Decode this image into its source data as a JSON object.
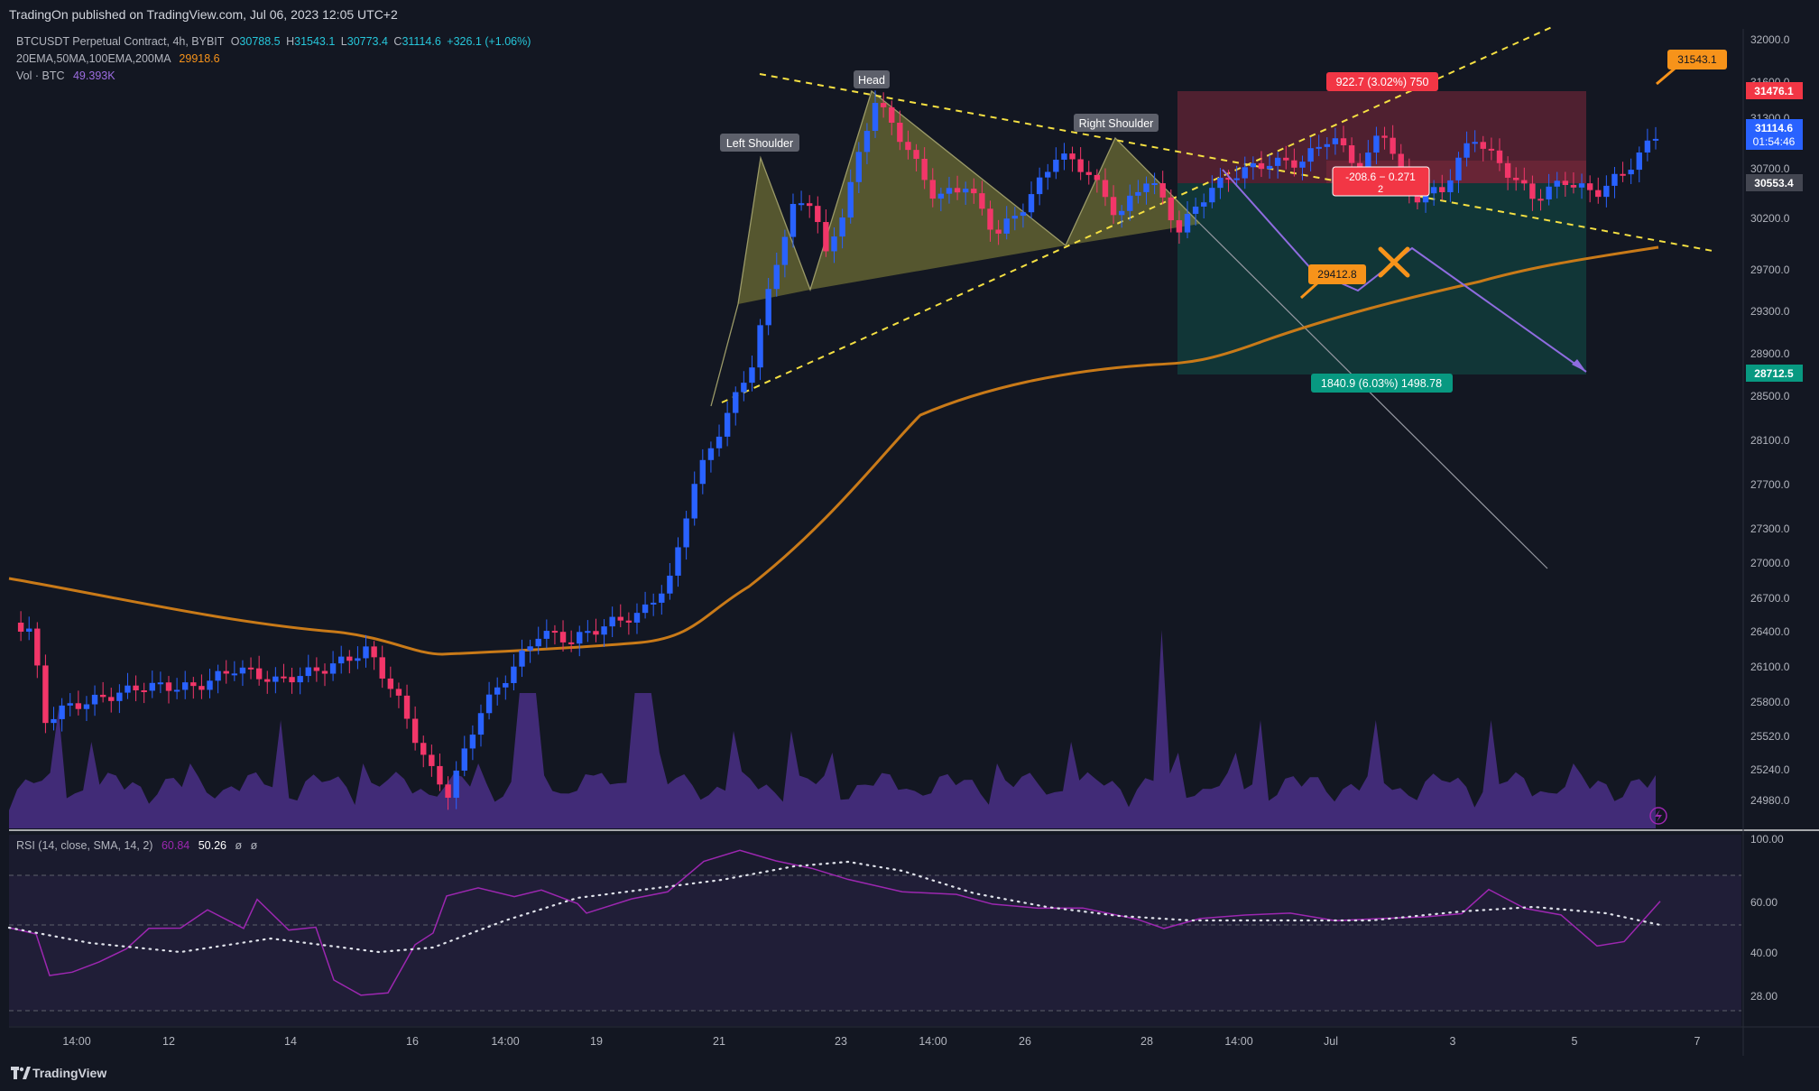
{
  "header": {
    "published": "TradingOn published on TradingView.com, Jul 06, 2023 12:05 UTC+2"
  },
  "legend": {
    "symbol": "BTCUSDT Perpetual Contract, 4h, BYBIT",
    "open_label": "O",
    "open": "30788.5",
    "high_label": "H",
    "high": "31543.1",
    "low_label": "L",
    "low": "30773.4",
    "close_label": "C",
    "close": "31114.6",
    "change": "+326.1 (+1.06%)",
    "ma_label": "20EMA,50MA,100EMA,200MA",
    "ma_value": "29918.6",
    "vol_label": "Vol · BTC",
    "vol_value": "49.393K"
  },
  "rsi_legend": {
    "label": "RSI (14, close, SMA, 14, 2)",
    "rsi": "60.84",
    "rsi_ma": "50.26",
    "extra1": "ø",
    "extra2": "ø"
  },
  "price_axis": {
    "ticks": [
      "32000.0",
      "31600.0",
      "31300.0",
      "30700.0",
      "30200.0",
      "29700.0",
      "29300.0",
      "28900.0",
      "28500.0",
      "28100.0",
      "27700.0",
      "27300.0",
      "27000.0",
      "26700.0",
      "26400.0",
      "26100.0",
      "25800.0",
      "25520.0",
      "25240.0",
      "24980.0"
    ],
    "labels": {
      "stop_price": "31476.1",
      "last_price": "31114.6",
      "countdown": "01:54:46",
      "entry_price": "30553.4",
      "target_price": "28712.5"
    }
  },
  "rsi_axis": {
    "ticks": [
      "100.00",
      "60.00",
      "40.00",
      "28.00"
    ]
  },
  "time_axis": {
    "ticks": [
      "14:00",
      "12",
      "14",
      "16",
      "14:00",
      "19",
      "21",
      "23",
      "14:00",
      "26",
      "28",
      "14:00",
      "Jul",
      "3",
      "5",
      "7"
    ]
  },
  "annotations": {
    "left_shoulder": "Left Shoulder",
    "head": "Head",
    "right_shoulder": "Right Shoulder",
    "stop_box": "922.7 (3.02%) 750",
    "target_box": "1840.9 (6.03%) 1498.78",
    "entry_box_line1": "-208.6 − 0.271",
    "entry_box_line2": "2",
    "low_callout": "29412.8",
    "high_callout": "31543.1"
  },
  "footer": {
    "brand": "TradingView"
  },
  "colors": {
    "background": "#131722",
    "up_candle": "#2962ff",
    "down_candle": "#f23669",
    "ma_line": "#c97a18",
    "pattern_fill": "#8c8a3a",
    "volume_fill": "#4a2f86",
    "rsi_line": "#9c27b0",
    "stop_zone": "#5b2233",
    "target_zone": "#123a3a",
    "callout": "#f7931a"
  },
  "icons": {
    "tv_logo": "tradingview-logo-icon",
    "lightning": "lightning-icon",
    "cross": "x-mark-icon"
  }
}
